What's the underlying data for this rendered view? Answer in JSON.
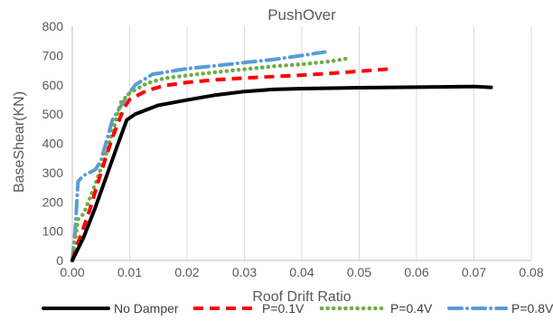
{
  "chart_data": {
    "type": "line",
    "title": "PushOver",
    "xlabel": "Roof Drift Ratio",
    "ylabel": "BaseShear(KN)",
    "xlim": [
      0,
      0.08
    ],
    "ylim": [
      0,
      800
    ],
    "x_ticks": [
      "0.00",
      "0.01",
      "0.02",
      "0.03",
      "0.04",
      "0.05",
      "0.06",
      "0.07",
      "0.08"
    ],
    "y_ticks": [
      "0",
      "100",
      "200",
      "300",
      "400",
      "500",
      "600",
      "700",
      "800"
    ],
    "grid": "vertical",
    "legend_position": "bottom",
    "series": [
      {
        "name": "No Damper",
        "color": "#000000",
        "dash": "solid",
        "points": [
          [
            0,
            0
          ],
          [
            0.002,
            80
          ],
          [
            0.004,
            180
          ],
          [
            0.006,
            290
          ],
          [
            0.008,
            400
          ],
          [
            0.0095,
            480
          ],
          [
            0.011,
            500
          ],
          [
            0.015,
            530
          ],
          [
            0.02,
            548
          ],
          [
            0.025,
            565
          ],
          [
            0.03,
            577
          ],
          [
            0.035,
            584
          ],
          [
            0.04,
            587
          ],
          [
            0.05,
            590
          ],
          [
            0.06,
            592
          ],
          [
            0.07,
            594
          ],
          [
            0.073,
            591
          ]
        ]
      },
      {
        "name": "P=0.1V",
        "color": "#ff0000",
        "dash": "dash",
        "points": [
          [
            0,
            0
          ],
          [
            0.001,
            60
          ],
          [
            0.003,
            170
          ],
          [
            0.005,
            300
          ],
          [
            0.007,
            420
          ],
          [
            0.009,
            520
          ],
          [
            0.01,
            550
          ],
          [
            0.013,
            580
          ],
          [
            0.016,
            597
          ],
          [
            0.02,
            608
          ],
          [
            0.025,
            617
          ],
          [
            0.03,
            623
          ],
          [
            0.035,
            628
          ],
          [
            0.04,
            633
          ],
          [
            0.045,
            639
          ],
          [
            0.05,
            646
          ],
          [
            0.056,
            655
          ]
        ]
      },
      {
        "name": "P=0.4V",
        "color": "#70ad47",
        "dash": "dot",
        "points": [
          [
            0,
            0
          ],
          [
            0.001,
            140
          ],
          [
            0.002,
            160
          ],
          [
            0.004,
            260
          ],
          [
            0.006,
            370
          ],
          [
            0.0085,
            540
          ],
          [
            0.01,
            572
          ],
          [
            0.013,
            605
          ],
          [
            0.016,
            622
          ],
          [
            0.02,
            632
          ],
          [
            0.025,
            643
          ],
          [
            0.03,
            653
          ],
          [
            0.035,
            663
          ],
          [
            0.04,
            670
          ],
          [
            0.045,
            680
          ],
          [
            0.048,
            690
          ]
        ]
      },
      {
        "name": "P=0.8V",
        "color": "#5b9bd5",
        "dash": "dashdot",
        "points": [
          [
            0,
            0
          ],
          [
            0.0005,
            100
          ],
          [
            0.001,
            270
          ],
          [
            0.002,
            290
          ],
          [
            0.004,
            310
          ],
          [
            0.005,
            340
          ],
          [
            0.007,
            480
          ],
          [
            0.0095,
            560
          ],
          [
            0.011,
            600
          ],
          [
            0.014,
            636
          ],
          [
            0.02,
            655
          ],
          [
            0.025,
            665
          ],
          [
            0.03,
            676
          ],
          [
            0.035,
            686
          ],
          [
            0.04,
            700
          ],
          [
            0.044,
            712
          ]
        ]
      }
    ]
  }
}
